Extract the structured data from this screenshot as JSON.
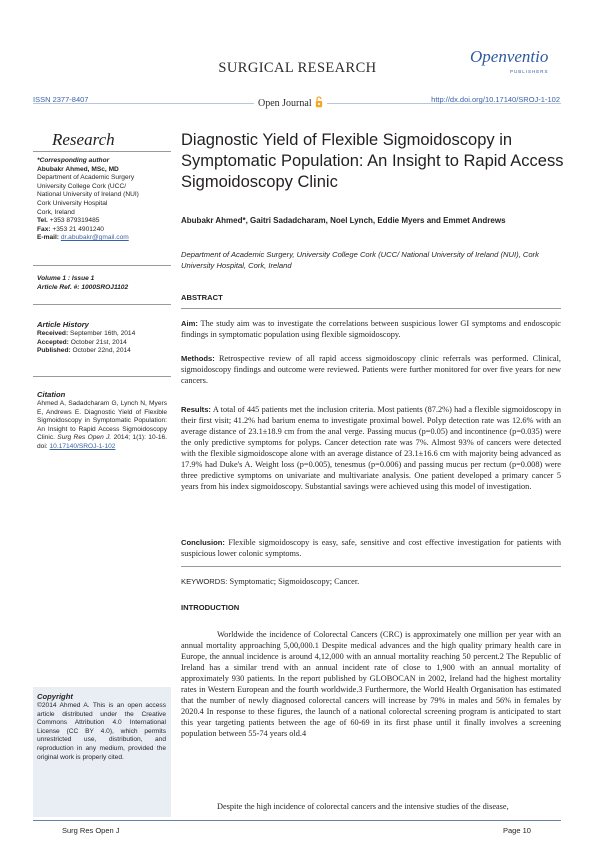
{
  "header": {
    "journal": "SURGICAL RESEARCH",
    "publisher_logo_text": "Openventio",
    "publisher_logo_sub": "PUBLISHERS",
    "issn": "ISSN 2377-8407",
    "open_journal": "Open Journal",
    "doi": "http://dx.doi.org/10.17140/SROJ-1-102",
    "accent_color": "#3a62a8",
    "oa_icon_color": "#f5a623"
  },
  "sidebar": {
    "category": "Research",
    "corr_label": "*Corresponding author",
    "corr_name": "Abubakr Ahmed, MSc, MD",
    "corr_address": [
      "Department of Academic Surgery",
      "University College Cork (UCC/",
      "National University of Ireland (NUI)",
      "Cork University Hospital",
      "Cork, Ireland"
    ],
    "tel_label": "Tel.",
    "tel": "+353 879319485",
    "fax_label": "Fax:",
    "fax": "+353 21 4901240",
    "email_label": "E-mail:",
    "email": "dr.abubakr@gmail.com",
    "volume": "Volume 1 : Issue 1",
    "article_ref": "Article Ref. #: 1000SROJ1102",
    "history_title": "Article History",
    "received_label": "Received:",
    "received": "September 16th, 2014",
    "accepted_label": "Accepted:",
    "accepted": "October 21st, 2014",
    "published_label": "Published:",
    "published": "October 22nd, 2014",
    "citation_title": "Citation",
    "citation_text": "Ahmed A, Sadadcharam G, Lynch N, Myers E, Andrews E. Diagnostic Yield of Flexible Sigmoidoscopy in Symptomatic Population: An Insight to Rapid Access Sigmoidoscopy Clinic.",
    "citation_journal": "Surg Res Open J.",
    "citation_tail": "2014; 1(1): 10-16. doi:",
    "citation_doi": "10.17140/SROJ-1-102",
    "copyright_title": "Copyright",
    "copyright_text": "©2014 Ahmed A. This is an open access article distributed under the Creative Commons Attribution 4.0 International License (CC BY 4.0), which permits unrestricted use, distribution, and reproduction in any medium, provided the original work is properly cited.",
    "copyright_bg": "#e9eef5"
  },
  "article": {
    "title": "Diagnostic Yield of Flexible Sigmoidoscopy in Symptomatic Population: An Insight to Rapid Access Sigmoidoscopy Clinic",
    "authors": "Abubakr Ahmed*, Gaitri Sadadcharam, Noel Lynch, Eddie Myers and Emmet Andrews",
    "affiliation": "Department of Academic Surgery, University College Cork (UCC/ National University of Ireland (NUI), Cork University Hospital, Cork, Ireland",
    "abstract_heading": "ABSTRACT",
    "aim_label": "Aim:",
    "aim": "The study aim was to investigate the correlations between suspicious lower GI symptoms and endoscopic findings in symptomatic population using flexible sigmoidoscopy.",
    "methods_label": "Methods:",
    "methods": "Retrospective review of all rapid access sigmoidoscopy clinic referrals was performed. Clinical, sigmoidoscopy findings and outcome were reviewed. Patients were further monitored for over five years for new cancers.",
    "results_label": "Results:",
    "results": "A total of 445 patients met the inclusion criteria. Most patients (87.2%) had a flexible sigmoidoscopy in their first visit; 41.2% had barium enema to investigate proximal bowel. Polyp detection rate was 12.6% with an average distance of 23.1±18.9 cm from the anal verge. Passing mucus (p=0.05) and incontinence (p=0.035) were the only predictive symptoms for polyps. Cancer detection rate was 7%. Almost 93% of cancers were detected with the flexible sigmoidoscope alone with an average distance of 23.1±16.6 cm with majority being advanced as 17.9% had Duke's A. Weight loss (p=0.005), tenesmus (p=0.006) and passing mucus per rectum (p=0.008) were three predictive symptoms on univariate and multivariate analysis. One patient developed a primary cancer 5 years from his index sigmoidoscopy. Substantial savings were achieved using this model of investigation.",
    "conclusion_label": "Conclusion:",
    "conclusion": "Flexible sigmoidoscopy is easy, safe, sensitive and cost effective investigation for patients with suspicious lower colonic symptoms.",
    "keywords_label": "KEYWORDS:",
    "keywords": "Symptomatic; Sigmoidoscopy; Cancer.",
    "intro_heading": "INTRODUCTION",
    "intro_p1": "Worldwide the incidence of Colorectal Cancers (CRC) is approximately one million per year with an annual mortality approaching 5,00,000.1 Despite medical advances and the high quality primary health care in Europe, the annual incidence is around 4,12,000 with an annual mortality reaching 50 percent.2 The Republic of Ireland has a similar trend with an annual incident rate of close to 1,900 with an annual mortality of approximately 930 patients. In the report published by GLOBOCAN in 2002, Ireland had the highest mortality rates in Western European and the fourth worldwide.3 Furthermore, the World Health Organisation has estimated that the number of newly diagnosed colorectal cancers will increase by 79% in males and 56% in females by 2020.4 In response to these figures, the launch of a national colorectal screening program is anticipated to start this year targeting patients between the age of 60-69 in its first phase until it finally involves a screening population between 55-74 years old.4",
    "intro_p2": "Despite the high incidence of colorectal cancers and the intensive studies of the disease,"
  },
  "footer": {
    "left": "Surg Res Open J",
    "right": "Page 10"
  }
}
